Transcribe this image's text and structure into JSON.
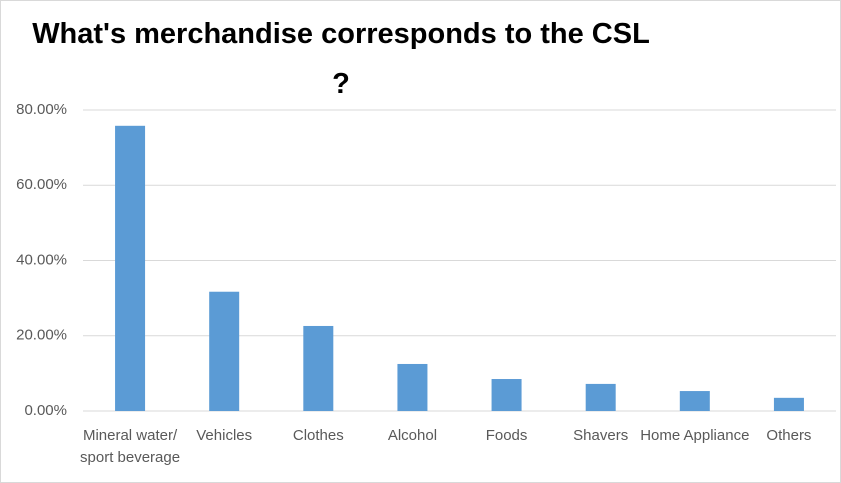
{
  "chart_data": {
    "type": "bar",
    "title": "What's merchandise corresponds to the CSL ?",
    "categories": [
      "Mineral water/ sport beverage",
      "Vehicles",
      "Clothes",
      "Alcohol",
      "Foods",
      "Shavers",
      "Home Appliance",
      "Others"
    ],
    "values": [
      75.8,
      31.7,
      22.6,
      12.5,
      8.5,
      7.2,
      5.3,
      3.5
    ],
    "color": "#5b9bd5",
    "ylim": [
      0,
      80
    ],
    "yticks": [
      {
        "value": 0,
        "label": "0.00%"
      },
      {
        "value": 20,
        "label": "20.00%"
      },
      {
        "value": 40,
        "label": "40.00%"
      },
      {
        "value": 60,
        "label": "60.00%"
      },
      {
        "value": 80,
        "label": "80.00%"
      }
    ],
    "grid": true
  }
}
